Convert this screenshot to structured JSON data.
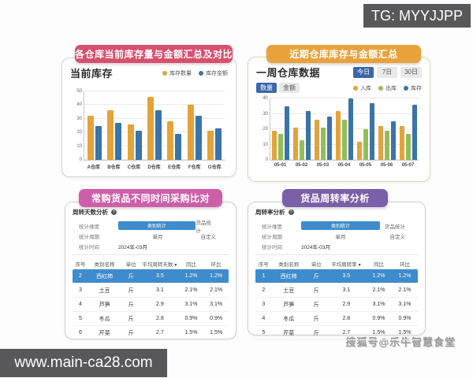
{
  "overlays": {
    "tg_label": "TG: MYYJJPP",
    "url_label": "www.main-ca28.com",
    "watermark": "搜狐号@乐牛智慧食堂"
  },
  "colors": {
    "header_red": "#D84F6E",
    "header_orange": "#E9A23B",
    "header_pink": "#CD5FA9",
    "header_purple": "#7A5FA9",
    "bar_orange": "#E2A33C",
    "bar_blue": "#3C73A8",
    "bar_green": "#93BE56",
    "active_blue": "#3A67A8",
    "highlight_row_blue": "#3E8CCB",
    "overlay_gray": "#58585A"
  },
  "panel1": {
    "header": "各仓库当前库存量与金额汇总及对比",
    "title": "当前库存",
    "chart": {
      "type": "bar",
      "ymax": 50,
      "yticks": [
        0,
        10,
        20,
        30,
        40,
        50
      ],
      "categories": [
        "A仓库",
        "B仓库",
        "C仓库",
        "D仓库",
        "E仓库",
        "F仓库",
        "G仓库"
      ],
      "series": [
        {
          "name": "库存数量",
          "color": "#E2A33C",
          "values": [
            32,
            36,
            26,
            46,
            28,
            40,
            21
          ]
        },
        {
          "name": "库存金额",
          "color": "#3C73A8",
          "values": [
            25,
            27,
            21,
            36,
            19,
            32,
            23
          ]
        }
      ]
    }
  },
  "panel2": {
    "header": "近期仓库库存与金额汇总",
    "title": "一周仓库数据",
    "ranges": [
      "今日",
      "7日",
      "30日"
    ],
    "tabs": [
      "数量",
      "金额"
    ],
    "chart": {
      "type": "bar",
      "ymax": 40,
      "yticks": [
        0,
        10,
        20,
        30,
        40
      ],
      "categories": [
        "05-01",
        "05-02",
        "05-03",
        "05-04",
        "05-05",
        "05-06",
        "05-07"
      ],
      "series": [
        {
          "name": "入库",
          "color": "#E2A33C",
          "values": [
            19,
            21,
            26,
            32,
            12,
            22,
            22
          ]
        },
        {
          "name": "出库",
          "color": "#93BE56",
          "values": [
            17,
            13,
            21,
            26,
            20,
            19,
            17
          ]
        },
        {
          "name": "库存",
          "color": "#3C73A8",
          "values": [
            35,
            32,
            28,
            40,
            37,
            25,
            36
          ]
        }
      ]
    }
  },
  "panel3": {
    "header": "常购货品不同时间采购比对",
    "title": "周转天数分析",
    "form": {
      "dim_label": "统计维度",
      "dim_button": "类别统计",
      "dim_option": "货品统计",
      "period_label": "统计周期",
      "period_value": "单月",
      "period_option": "自定义",
      "time_label": "统计时间",
      "time_value": "2024年-03月"
    },
    "table": {
      "columns": [
        "序号",
        "类别名称",
        "单位",
        "平均周转天数",
        "同比",
        "环比"
      ],
      "sort_column_index": 3,
      "highlight_row_index": 0,
      "rows": [
        [
          "2",
          "西红柿",
          "斤",
          "3.5",
          "1.2%",
          "1.2%"
        ],
        [
          "3",
          "土豆",
          "斤",
          "3.1",
          "2.1%",
          "2.1%"
        ],
        [
          "4",
          "芦笋",
          "斤",
          "2.9",
          "3.1%",
          "3.1%"
        ],
        [
          "5",
          "冬瓜",
          "斤",
          "2.8",
          "0.9%",
          "0.9%"
        ],
        [
          "6",
          "芹菜",
          "斤",
          "2.7",
          "1.5%",
          "1.5%"
        ]
      ]
    }
  },
  "panel4": {
    "header": "货品周转率分析",
    "title": "周转率分析",
    "form": {
      "dim_label": "统计维度",
      "dim_button": "类别统计",
      "dim_option": "货品统计",
      "period_label": "统计周期",
      "period_value": "单月",
      "period_option": "自定义",
      "time_label": "统计时间",
      "time_value": "2024年-03月"
    },
    "table": {
      "columns": [
        "序号",
        "类别名称",
        "单位",
        "平均周转率",
        "同比",
        "环比"
      ],
      "sort_column_index": 3,
      "highlight_row_index": 0,
      "rows": [
        [
          "1",
          "西红柿",
          "斤",
          "3.5",
          "1.2%",
          "1.2%"
        ],
        [
          "2",
          "土豆",
          "斤",
          "3.1",
          "2.1%",
          "2.1%"
        ],
        [
          "3",
          "芦笋",
          "斤",
          "2.9",
          "3.1%",
          "3.1%"
        ],
        [
          "4",
          "冬瓜",
          "斤",
          "2.8",
          "0.9%",
          "0.9%"
        ],
        [
          "5",
          "芹菜",
          "斤",
          "2.7",
          "1.5%",
          "1.5%"
        ]
      ]
    }
  }
}
